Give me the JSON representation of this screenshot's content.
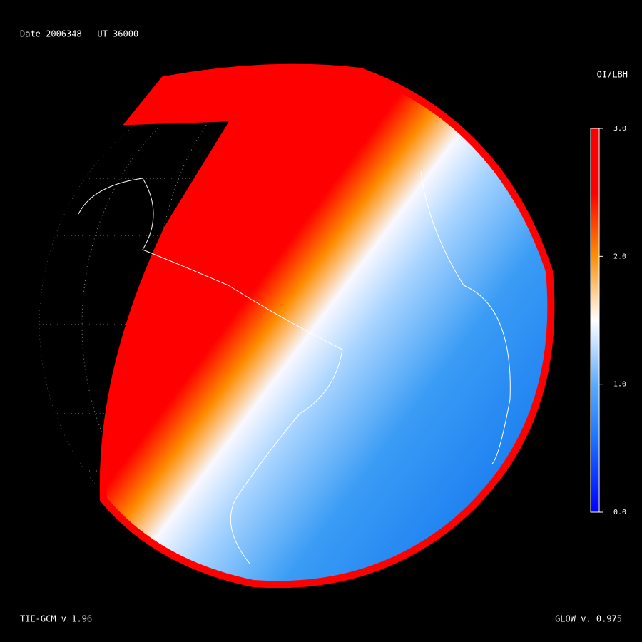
{
  "header": {
    "title": "Date 2006348   UT 36000"
  },
  "colorbar": {
    "title": "OI/LBH",
    "lim": [
      0,
      3
    ],
    "ticks": [
      {
        "value": 0,
        "label": "0.0"
      },
      {
        "value": 1,
        "label": "1.0"
      },
      {
        "value": 2,
        "label": "2.0"
      },
      {
        "value": 3,
        "label": "3.0"
      }
    ]
  },
  "footer": {
    "left": "TIE-GCM v 1.96",
    "right": "GLOW v. 0.975"
  }
}
